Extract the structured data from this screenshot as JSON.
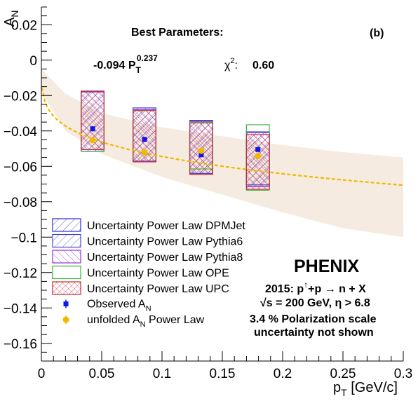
{
  "chart_data": {
    "type": "scatter",
    "panel_label": "(b)",
    "xlabel": "p_T [GeV/c]",
    "ylabel": "A_N",
    "xlim": [
      0,
      0.3
    ],
    "ylim": [
      -0.17,
      0.03
    ],
    "x_ticks": [
      "0",
      "0.05",
      "0.1",
      "0.15",
      "0.2",
      "0.25",
      "0.3"
    ],
    "y_ticks": [
      "0.02",
      "0",
      "−0.02",
      "−0.04",
      "−0.06",
      "−0.08",
      "−0.1",
      "−0.12",
      "−0.14",
      "−0.16"
    ],
    "x_ticks_values": [
      0,
      0.05,
      0.1,
      0.15,
      0.2,
      0.25,
      0.3
    ],
    "y_ticks_values": [
      0.02,
      0,
      -0.02,
      -0.04,
      -0.06,
      -0.08,
      -0.1,
      -0.12,
      -0.14,
      -0.16
    ],
    "fit": {
      "title": "Best Parameters:",
      "formula_coef": "-0.094 P",
      "formula_sub": "T",
      "formula_exp": "0.237",
      "chi2_label": "χ",
      "chi2_exp": "2",
      "chi2_sep": ":",
      "chi2_value": "0.60",
      "coefficient": -0.094,
      "exponent": 0.237
    },
    "fit_band": {
      "x": [
        0,
        0.02,
        0.05,
        0.1,
        0.15,
        0.2,
        0.25,
        0.3
      ],
      "upper": [
        -0.005,
        -0.019,
        -0.03,
        -0.038,
        -0.043,
        -0.048,
        -0.052,
        -0.055
      ],
      "lower": [
        -0.018,
        -0.04,
        -0.053,
        -0.066,
        -0.076,
        -0.086,
        -0.095,
        -0.1
      ]
    },
    "systematic_boxes": [
      {
        "name": "Uncertainty Power Law DPMJet",
        "color": "#2a2ad8",
        "pattern": "diag",
        "boxes": [
          {
            "x": 0.0425,
            "half_width": 0.0095,
            "ylo": -0.0505,
            "yhi": -0.0175
          },
          {
            "x": 0.0855,
            "half_width": 0.0095,
            "ylo": -0.057,
            "yhi": -0.027
          },
          {
            "x": 0.1325,
            "half_width": 0.0095,
            "ylo": -0.064,
            "yhi": -0.034
          },
          {
            "x": 0.1795,
            "half_width": 0.0095,
            "ylo": -0.0705,
            "yhi": -0.0405
          }
        ]
      },
      {
        "name": "Uncertainty Power Law Pythia6",
        "color": "#4747c8",
        "pattern": "diag",
        "boxes": [
          {
            "x": 0.0425,
            "half_width": 0.0095,
            "ylo": -0.0515,
            "yhi": -0.018
          },
          {
            "x": 0.0855,
            "half_width": 0.0095,
            "ylo": -0.057,
            "yhi": -0.028
          },
          {
            "x": 0.1325,
            "half_width": 0.0095,
            "ylo": -0.064,
            "yhi": -0.0345
          },
          {
            "x": 0.1795,
            "half_width": 0.0095,
            "ylo": -0.0715,
            "yhi": -0.0405
          }
        ]
      },
      {
        "name": "Uncertainty Power Law Pythia8",
        "color": "#9a2fd8",
        "pattern": "diag",
        "boxes": [
          {
            "x": 0.0425,
            "half_width": 0.0095,
            "ylo": -0.0515,
            "yhi": -0.018
          },
          {
            "x": 0.0855,
            "half_width": 0.0095,
            "ylo": -0.057,
            "yhi": -0.028
          },
          {
            "x": 0.1325,
            "half_width": 0.0095,
            "ylo": -0.0645,
            "yhi": -0.0345
          },
          {
            "x": 0.1795,
            "half_width": 0.0095,
            "ylo": -0.0715,
            "yhi": -0.041
          }
        ]
      },
      {
        "name": "Uncertainty Power Law OPE",
        "color": "#33b533",
        "pattern": "none",
        "boxes": [
          {
            "x": 0.0425,
            "half_width": 0.0095,
            "ylo": -0.0515,
            "yhi": -0.0175
          },
          {
            "x": 0.0855,
            "half_width": 0.0095,
            "ylo": -0.0575,
            "yhi": -0.0285
          },
          {
            "x": 0.1325,
            "half_width": 0.0095,
            "ylo": -0.0615,
            "yhi": -0.035
          },
          {
            "x": 0.1795,
            "half_width": 0.0095,
            "ylo": -0.0735,
            "yhi": -0.0365
          }
        ]
      },
      {
        "name": "Uncertainty Power Law UPC",
        "color": "#c22a3a",
        "pattern": "cross",
        "boxes": [
          {
            "x": 0.0425,
            "half_width": 0.0095,
            "ylo": -0.0505,
            "yhi": -0.0175
          },
          {
            "x": 0.0855,
            "half_width": 0.0095,
            "ylo": -0.0575,
            "yhi": -0.0285
          },
          {
            "x": 0.1325,
            "half_width": 0.0095,
            "ylo": -0.0645,
            "yhi": -0.0355
          },
          {
            "x": 0.1795,
            "half_width": 0.0095,
            "ylo": -0.073,
            "yhi": -0.042
          }
        ]
      }
    ],
    "series": [
      {
        "name": "Observed A_N",
        "label_main": "Observed A",
        "label_sub": "N",
        "label_rest": "",
        "color": "#1414e6",
        "marker": "square",
        "x": [
          0.0425,
          0.0855,
          0.1325,
          0.1795
        ],
        "y": [
          -0.0388,
          -0.0448,
          -0.0535,
          -0.0505
        ],
        "err": [
          0.0015,
          0.0014,
          0.0013,
          0.0013
        ]
      },
      {
        "name": "unfolded A_N Power Law",
        "label_main": "unfolded A",
        "label_sub": "N",
        "label_rest": " Power Law",
        "color": "#f2b800",
        "marker": "circle",
        "x": [
          0.0425,
          0.0855,
          0.1325,
          0.1795
        ],
        "y": [
          -0.0452,
          -0.0522,
          -0.0512,
          -0.0542
        ],
        "err": [
          0.0016,
          0.0016,
          0.0015,
          0.0015
        ]
      }
    ],
    "annotations": {
      "experiment": "PHENIX",
      "line1_a": "2015: p",
      "line1_arrow": "↑",
      "line1_b": "+p  → n + X",
      "line2_a": "√s = 200 GeV,  η > 6.8",
      "line3": "3.4 % Polarization scale",
      "line4": "uncertainty not shown"
    },
    "colors": {
      "band": "#f5ebe0",
      "fit_line": "#f2b800",
      "axis": "#000000"
    },
    "legend_position": "bottom-left",
    "grid": false
  }
}
